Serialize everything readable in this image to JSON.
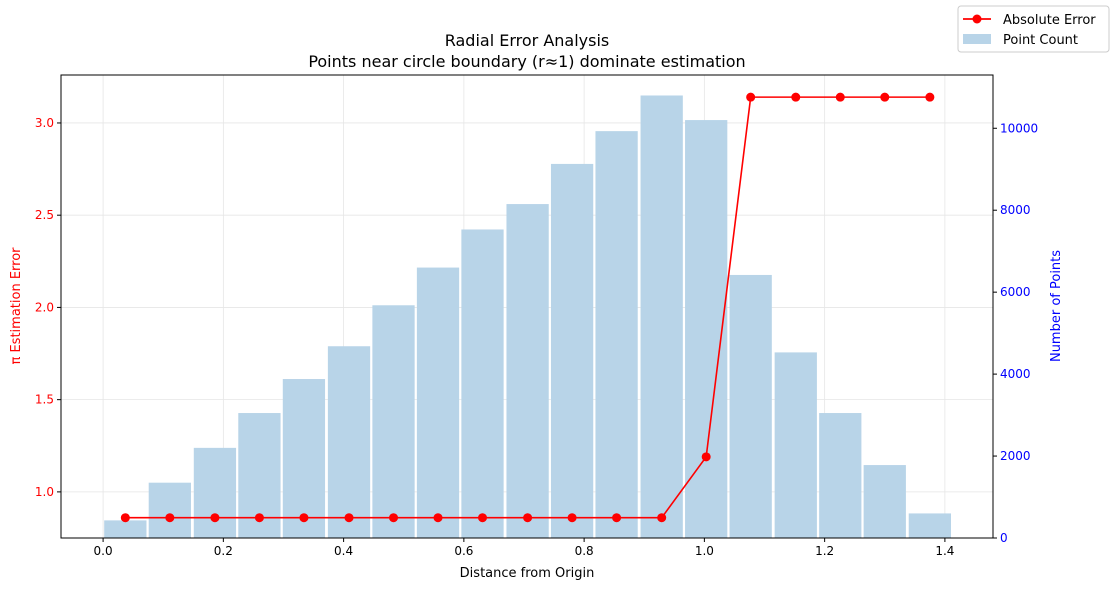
{
  "chart_data": {
    "type": "bar+line",
    "title": "Radial Error Analysis",
    "subtitle": "Points near circle boundary (r≈1) dominate estimation",
    "xlabel": "Distance from Origin",
    "ylabel_left": "π Estimation Error",
    "ylabel_right": "Number of Points",
    "xlim": [
      -0.07,
      1.48
    ],
    "ylim_left": [
      0.75,
      3.26
    ],
    "ylim_right": [
      0,
      11300
    ],
    "xticks": [
      "0.0",
      "0.2",
      "0.4",
      "0.6",
      "0.8",
      "1.0",
      "1.2",
      "1.4"
    ],
    "yticks_left": [
      "1.0",
      "1.5",
      "2.0",
      "2.5",
      "3.0"
    ],
    "yticks_right": [
      "0",
      "2000",
      "4000",
      "6000",
      "8000",
      "10000"
    ],
    "grid": true,
    "legend_position": "top-right",
    "colors": {
      "line": "#ff0000",
      "bar": "#b8d4e8",
      "left_axis": "#ff0000",
      "right_axis": "#0000ff"
    },
    "series": [
      {
        "name": "Absolute Error",
        "kind": "line",
        "axis": "left",
        "x": [
          0.037,
          0.111,
          0.186,
          0.26,
          0.334,
          0.409,
          0.483,
          0.557,
          0.631,
          0.706,
          0.78,
          0.854,
          0.929,
          1.003,
          1.077,
          1.152,
          1.226,
          1.3,
          1.375
        ],
        "y": [
          0.86,
          0.86,
          0.86,
          0.86,
          0.86,
          0.86,
          0.86,
          0.86,
          0.86,
          0.86,
          0.86,
          0.86,
          0.86,
          1.19,
          3.14,
          3.14,
          3.14,
          3.14,
          3.14
        ]
      },
      {
        "name": "Point Count",
        "kind": "bar",
        "axis": "right",
        "x": [
          0.037,
          0.111,
          0.186,
          0.26,
          0.334,
          0.409,
          0.483,
          0.557,
          0.631,
          0.706,
          0.78,
          0.854,
          0.929,
          1.003,
          1.077,
          1.152,
          1.226,
          1.3,
          1.375
        ],
        "values": [
          430,
          1350,
          2200,
          3050,
          3880,
          4680,
          5680,
          6600,
          7530,
          8150,
          9130,
          9930,
          10800,
          10200,
          6420,
          4530,
          3050,
          1780,
          600
        ]
      }
    ]
  }
}
